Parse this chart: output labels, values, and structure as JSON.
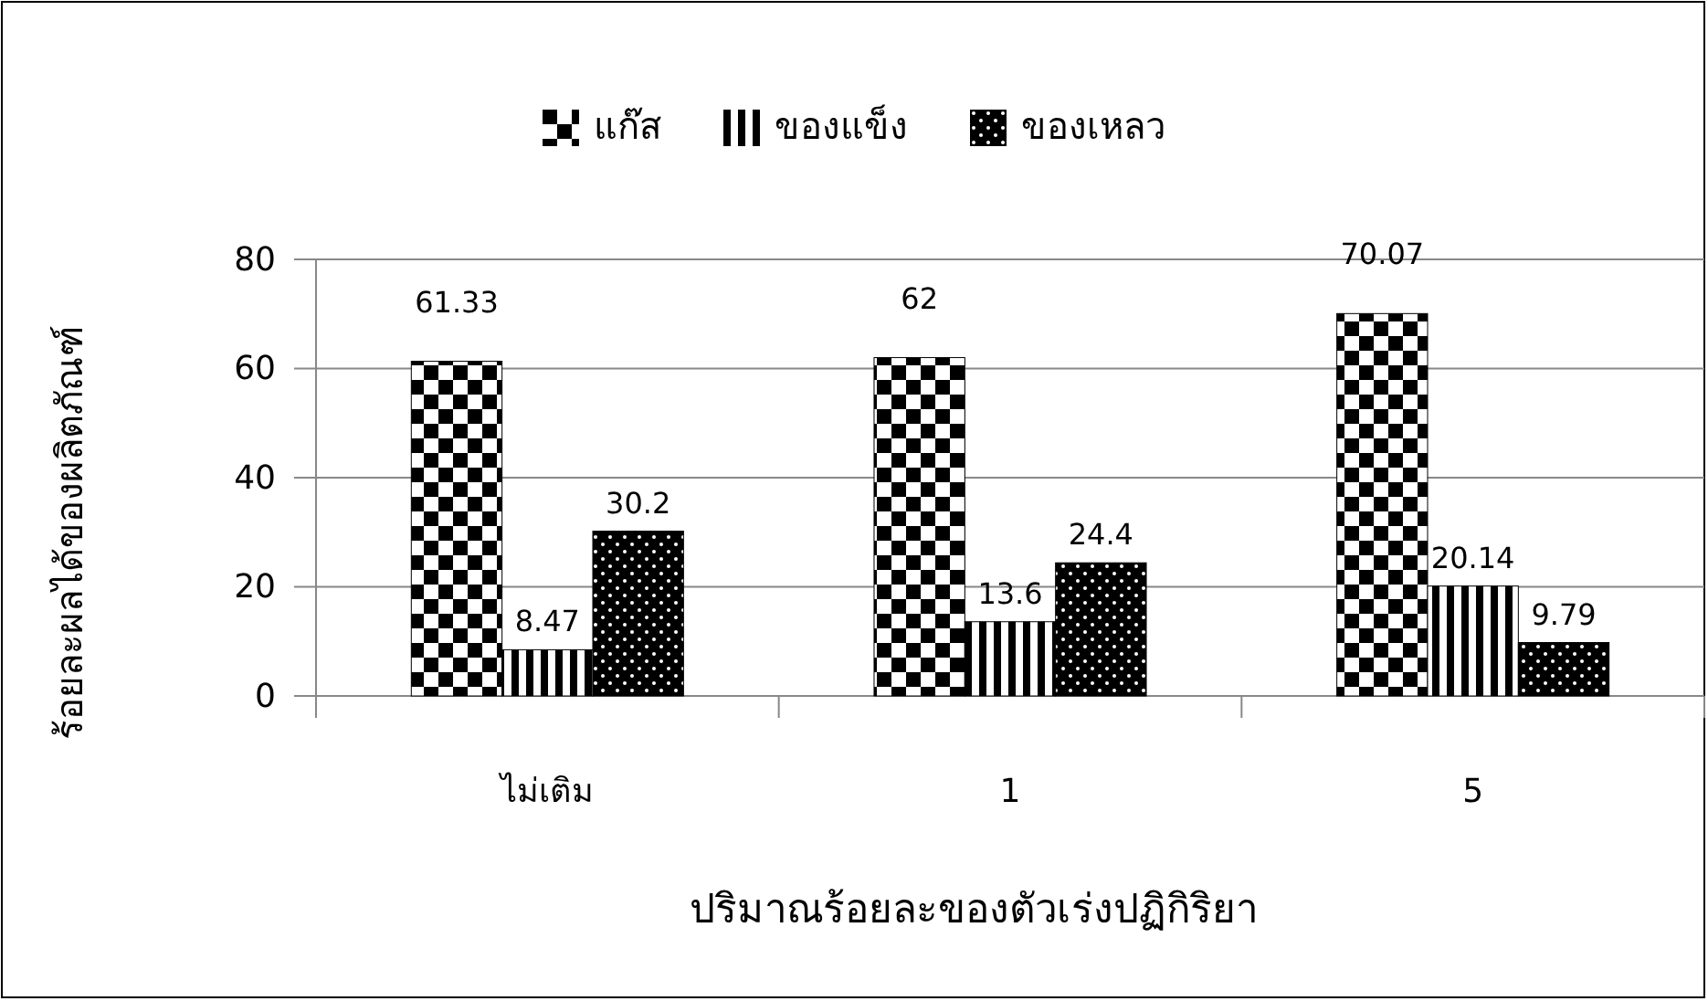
{
  "chart_data": {
    "type": "bar",
    "xlabel": "ปริมาณร้อยละของตัวเร่งปฏิกิริยา",
    "ylabel": "ร้อยละผลได้ของผลิตภัณฑ์",
    "categories": [
      "ไม่เติม",
      "1",
      "5"
    ],
    "series": [
      {
        "name": "แก๊ส",
        "color": "#000000",
        "values": [
          61.33,
          62,
          70.07
        ]
      },
      {
        "name": "ของแข็ง",
        "color": "#000000",
        "values": [
          8.47,
          13.6,
          20.14
        ]
      },
      {
        "name": "ของเหลว",
        "color": "#000000",
        "values": [
          30.2,
          24.4,
          9.79
        ]
      }
    ],
    "ylim": [
      0,
      80
    ],
    "yticks": [
      0,
      20,
      40,
      60,
      80
    ],
    "grid": "y",
    "legend": "top",
    "data_labels": true
  }
}
